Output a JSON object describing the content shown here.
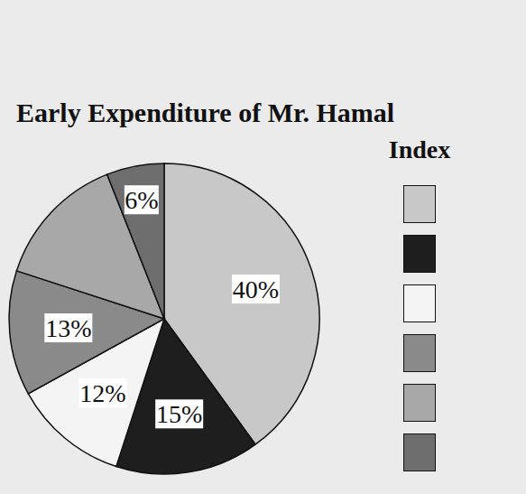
{
  "chart_data": {
    "type": "pie",
    "title": "Early Expenditure of Mr. Hamal",
    "legend_title": "Index",
    "categories": [
      null,
      null,
      null,
      null,
      null,
      null
    ],
    "values": [
      40,
      15,
      12,
      13,
      14,
      6
    ],
    "value_labels": [
      "40%",
      "15%",
      "12%",
      "13%",
      null,
      "6%"
    ],
    "colors": [
      "#c8c8c8",
      "#1e1e1e",
      "#f4f4f4",
      "#8a8a8a",
      "#a8a8a8",
      "#6e6e6e"
    ],
    "legend": "right",
    "data_labels": true
  }
}
